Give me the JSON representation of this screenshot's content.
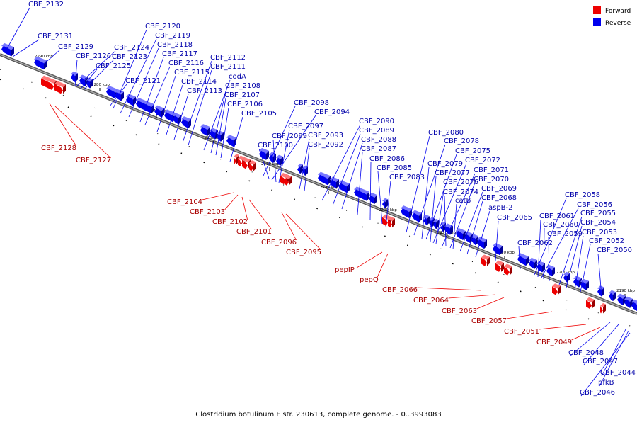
{
  "caption": "Clostridium botulinum F str. 230613, complete genome. - 0..3993083",
  "legend": [
    {
      "label": "Forward",
      "color": "#ee0000"
    },
    {
      "label": "Reverse",
      "color": "#0000ee"
    }
  ],
  "colors": {
    "forward": "#ee0000",
    "reverse": "#0000ee",
    "axis": "#666666"
  },
  "ticks": [
    "2290 kbp",
    "2280 kbp",
    "2270 kbp",
    "2260 kbp",
    "2250 kbp",
    "2240 kbp",
    "2230 kbp",
    "2220 kbp",
    "2210 kbp",
    "2200 kbp",
    "2190 kbp"
  ],
  "reverse_labels": [
    "CBF_2132",
    "CBF_2131",
    "CBF_2129",
    "CBF_2126",
    "CBF_2125",
    "CBF_2124",
    "CBF_2123",
    "CBF_2121",
    "CBF_2120",
    "CBF_2119",
    "CBF_2118",
    "CBF_2117",
    "CBF_2116",
    "CBF_2115",
    "CBF_2114",
    "CBF_2113",
    "CBF_2112",
    "CBF_2111",
    "codA",
    "CBF_2108",
    "CBF_2107",
    "CBF_2106",
    "CBF_2105",
    "CBF_2098",
    "CBF_2094",
    "CBF_2097",
    "CBF_2099",
    "CBF_2093",
    "CBF_2100",
    "CBF_2092",
    "CBF_2090",
    "CBF_2089",
    "CBF_2088",
    "CBF_2087",
    "CBF_2086",
    "CBF_2085",
    "CBF_2083",
    "CBF_2080",
    "CBF_2078",
    "CBF_2075",
    "CBF_2079",
    "CBF_2072",
    "CBF_2077",
    "CBF_2071",
    "CBF_2076",
    "CBF_2070",
    "CBF_2074",
    "CBF_2069",
    "catB",
    "CBF_2068",
    "aspB-2",
    "CBF_2065",
    "CBF_2062",
    "CBF_2058",
    "CBF_2056",
    "CBF_2061",
    "CBF_2055",
    "CBF_2060",
    "CBF_2054",
    "CBF_2059",
    "CBF_2053",
    "CBF_2052",
    "CBF_2050",
    "CBF_2048",
    "CBF_2047",
    "CBF_2044",
    "pfkB",
    "CBF_2046"
  ],
  "forward_labels": [
    "CBF_2128",
    "CBF_2127",
    "CBF_2104",
    "CBF_2103",
    "CBF_2102",
    "CBF_2101",
    "CBF_2096",
    "CBF_2095",
    "pepIP",
    "pepQ",
    "CBF_2066",
    "CBF_2064",
    "CBF_2063",
    "CBF_2057",
    "CBF_2051",
    "CBF_2049"
  ]
}
